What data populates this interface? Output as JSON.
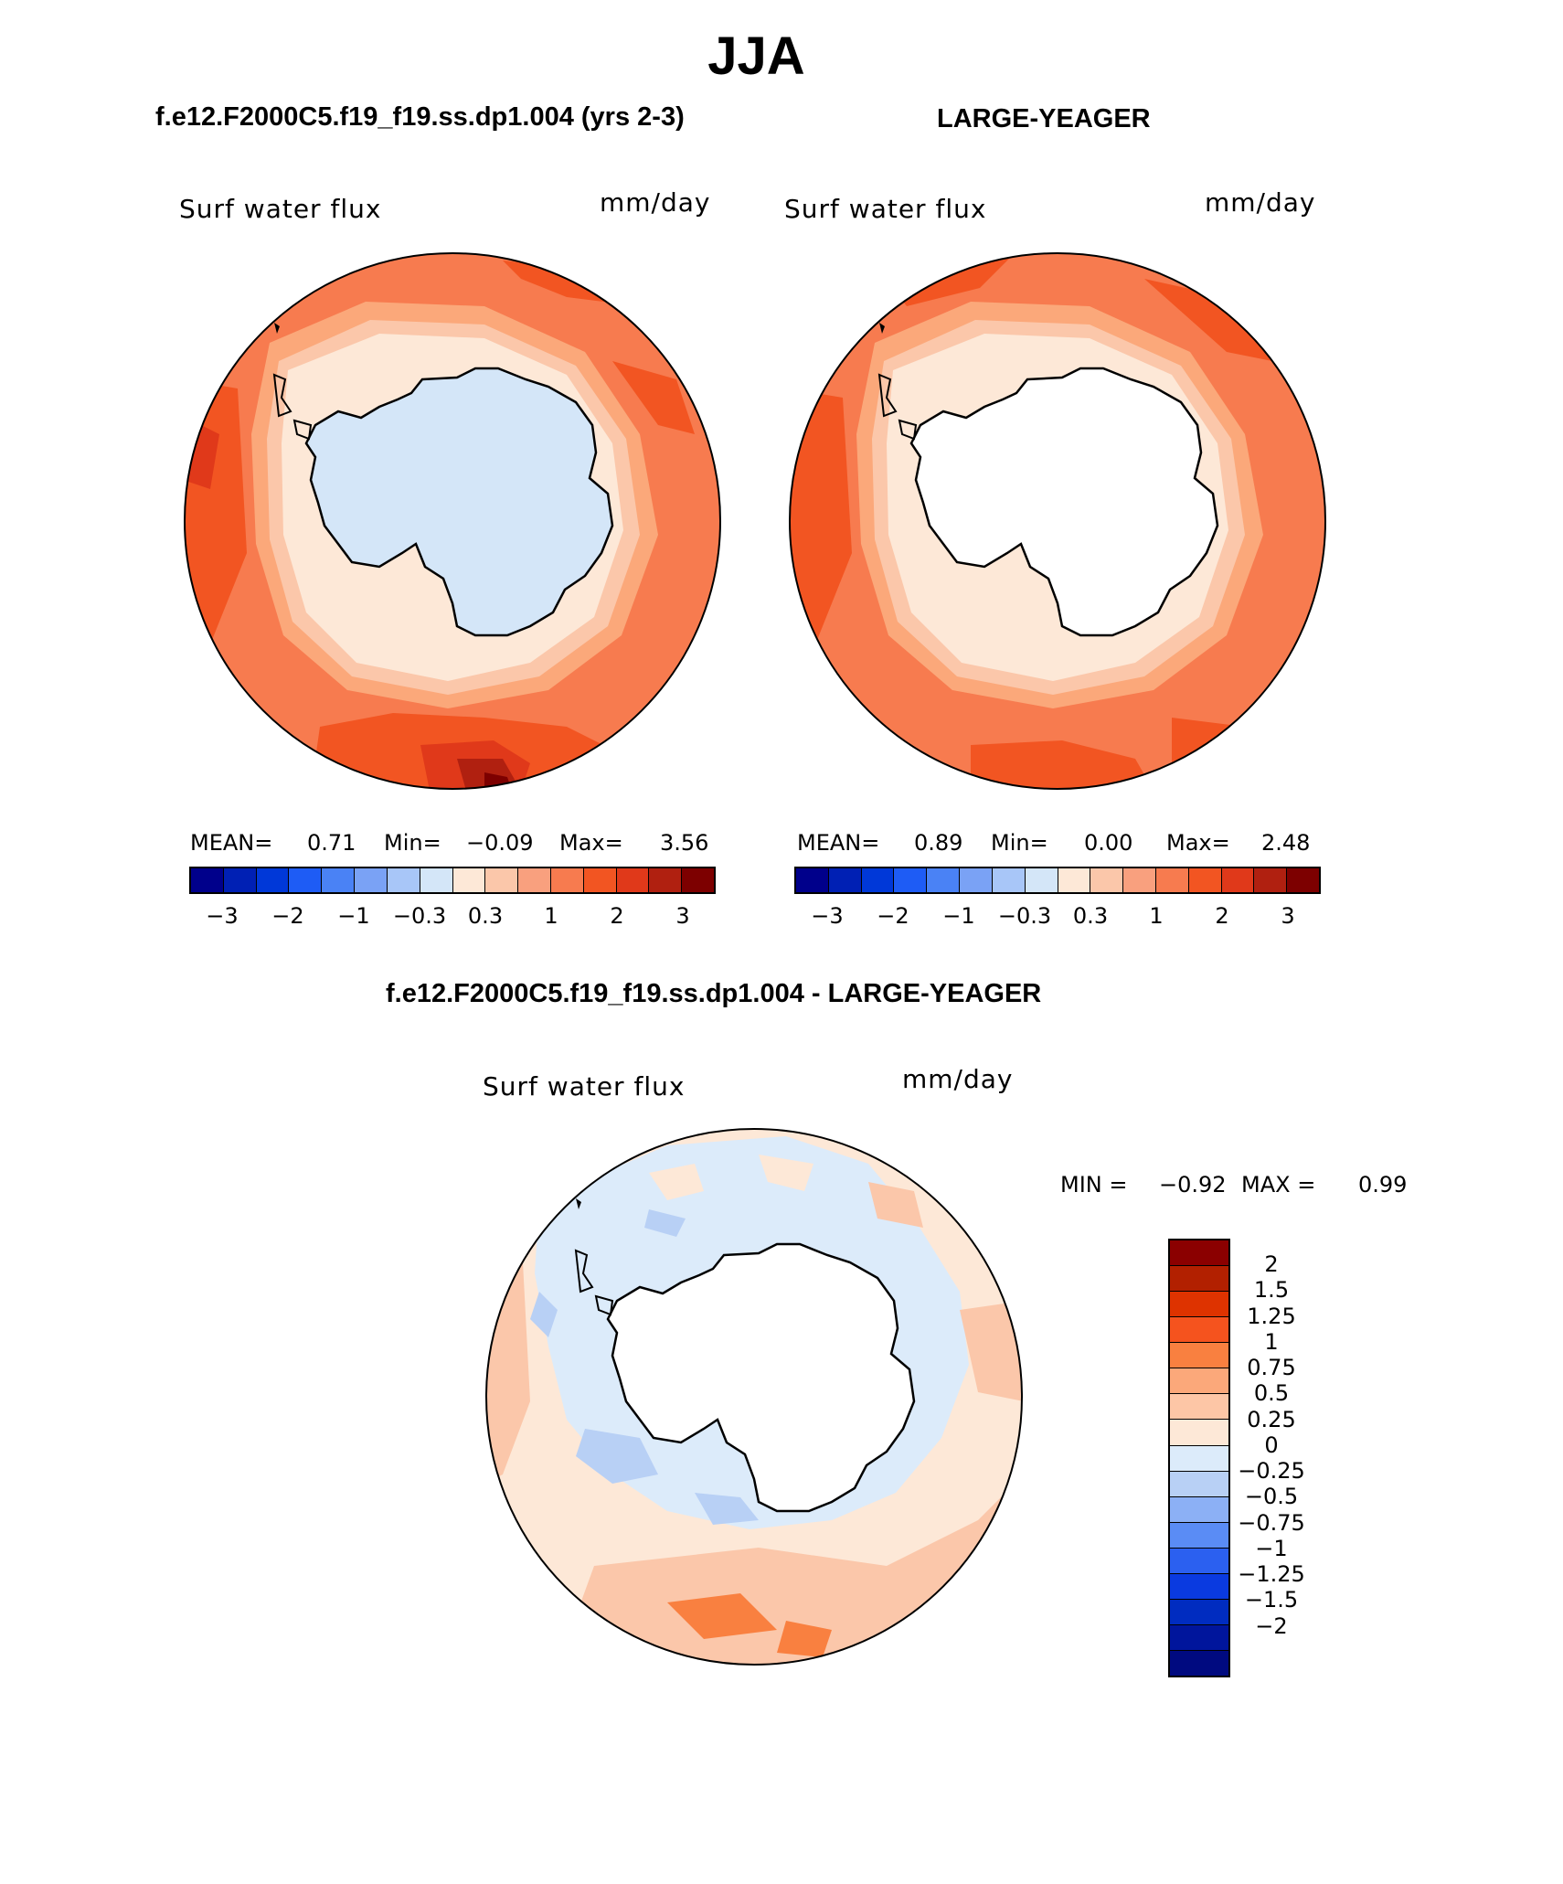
{
  "title": "JJA",
  "panels": [
    {
      "name": "model",
      "header": "f.e12.F2000C5.f19_f19.ss.dp1.004 (yrs 2-3)",
      "field_label": "Surf water flux",
      "units": "mm/day",
      "stats": {
        "mean_label": "MEAN=",
        "mean": "0.71",
        "min_label": "Min=",
        "min": "−0.09",
        "max_label": "Max=",
        "max": "3.56"
      },
      "land_color": "#d4e6f8",
      "inner_color": "#fde8d7"
    },
    {
      "name": "observations",
      "header": "LARGE-YEAGER",
      "field_label": "Surf water flux",
      "units": "mm/day",
      "stats": {
        "mean_label": "MEAN=",
        "mean": "0.89",
        "min_label": "Min=",
        "min": "0.00",
        "max_label": "Max=",
        "max": "2.48"
      },
      "land_color": "#ffffff",
      "inner_color": "#fde8d7"
    }
  ],
  "colorbar_top": {
    "colors": [
      "#00008b",
      "#0020b4",
      "#0038d8",
      "#1e5cf5",
      "#4a82f5",
      "#7aa2f5",
      "#a8c6f8",
      "#d4e6f8",
      "#fde8d7",
      "#fbc7aa",
      "#f9a07e",
      "#f77b4f",
      "#f25522",
      "#e0391a",
      "#b02010",
      "#7d0000"
    ],
    "tick_labels": [
      "−3",
      "−2",
      "−1",
      "−0.3",
      "0.3",
      "1",
      "2",
      "3"
    ]
  },
  "difference": {
    "header": "f.e12.F2000C5.f19_f19.ss.dp1.004 - LARGE-YEAGER",
    "field_label": "Surf water flux",
    "units": "mm/day",
    "stats": {
      "min_label": "MIN =",
      "min": "−0.92",
      "max_label": "MAX =",
      "max": "0.99"
    },
    "colorbar": {
      "colors": [
        "#8b0000",
        "#b22000",
        "#de3300",
        "#f5531e",
        "#f98040",
        "#fba87a",
        "#fdc6a6",
        "#fde8d7",
        "#dcebfa",
        "#b8d0f5",
        "#8cb0f5",
        "#5a8cf5",
        "#2b60f0",
        "#0a3ae0",
        "#002cc0",
        "#00159c",
        "#000a80"
      ],
      "labels": [
        "2",
        "1.5",
        "1.25",
        "1",
        "0.75",
        "0.5",
        "0.25",
        "0",
        "−0.25",
        "−0.5",
        "−0.75",
        "−1",
        "−1.25",
        "−1.5",
        "−2"
      ]
    }
  }
}
